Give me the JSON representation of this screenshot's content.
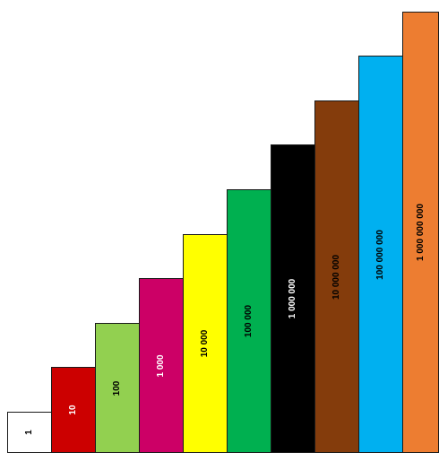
{
  "bars": [
    {
      "label": "1",
      "value": 1,
      "color": "#ffffff",
      "text_color": "#000000"
    },
    {
      "label": "10",
      "value": 10,
      "color": "#cc0000",
      "text_color": "#ffffff"
    },
    {
      "label": "100",
      "value": 100,
      "color": "#92d050",
      "text_color": "#000000"
    },
    {
      "label": "1 000",
      "value": 1000,
      "color": "#cc0066",
      "text_color": "#ffffff"
    },
    {
      "label": "10 000",
      "value": 10000,
      "color": "#ffff00",
      "text_color": "#000000"
    },
    {
      "label": "100 000",
      "value": 100000,
      "color": "#00b050",
      "text_color": "#000000"
    },
    {
      "label": "1 000 000",
      "value": 1000000,
      "color": "#000000",
      "text_color": "#ffffff"
    },
    {
      "label": "10 000 000",
      "value": 10000000,
      "color": "#843c0c",
      "text_color": "#000000"
    },
    {
      "label": "100 000 000",
      "value": 100000000,
      "color": "#00b0f0",
      "text_color": "#000000"
    },
    {
      "label": "1 000 000 000",
      "value": 1000000000,
      "color": "#ed7d31",
      "text_color": "#000000"
    }
  ]
}
